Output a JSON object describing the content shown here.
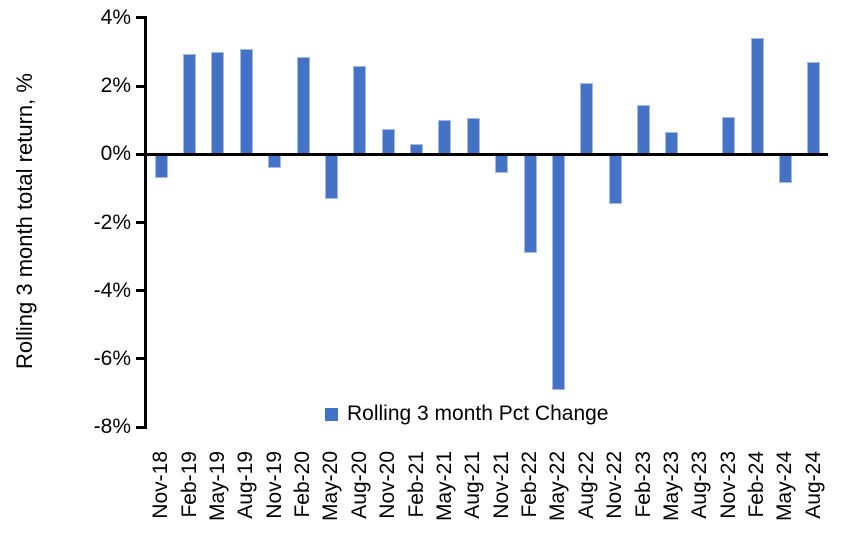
{
  "chart_data": {
    "type": "bar",
    "title": "",
    "xlabel": "",
    "ylabel": "Rolling 3 month total return, %",
    "ylim": [
      -8,
      4
    ],
    "yticks": [
      4,
      2,
      0,
      -2,
      -4,
      -6,
      -8
    ],
    "y_tick_labels": [
      "4%",
      "2%",
      "0%",
      "-2%",
      "-4%",
      "-6%",
      "-8%"
    ],
    "grid": false,
    "legend_position": "bottom",
    "legend": [
      "Rolling 3 month Pct Change"
    ],
    "bar_color": "#4472C4",
    "axis_color": "#000000",
    "background_color": "#FFFFFF",
    "categories": [
      "Nov-18",
      "Feb-19",
      "May-19",
      "Aug-19",
      "Nov-19",
      "Feb-20",
      "May-20",
      "Aug-20",
      "Nov-20",
      "Feb-21",
      "May-21",
      "Aug-21",
      "Nov-21",
      "Feb-22",
      "May-22",
      "Aug-22",
      "Nov-22",
      "Feb-23",
      "May-23",
      "Aug-23",
      "Nov-23",
      "Feb-24",
      "May-24",
      "Aug-24"
    ],
    "values": [
      -0.7,
      2.95,
      3.0,
      3.1,
      -0.4,
      2.85,
      -1.3,
      2.6,
      0.75,
      0.3,
      1.0,
      1.05,
      -0.55,
      -2.9,
      -6.9,
      2.1,
      -1.45,
      1.45,
      0.65,
      0.0,
      1.1,
      3.4,
      -0.85,
      2.7
    ]
  }
}
